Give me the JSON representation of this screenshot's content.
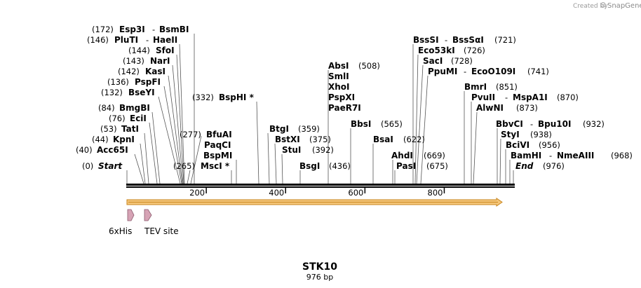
{
  "credit": {
    "text": "Created by",
    "brand": "SnapGene"
  },
  "map": {
    "name": "STK10",
    "length_label": "976 bp",
    "length_bp": 976,
    "ticks": [
      "200",
      "400",
      "600",
      "800"
    ],
    "tick_values": [
      200,
      400,
      600,
      800
    ],
    "features": [
      {
        "label": "6xHis"
      },
      {
        "label": "TEV site"
      }
    ]
  },
  "sites": {
    "esp3i": {
      "pos": "(172)",
      "name": "Esp3I",
      "sep": "-",
      "name2": "BsmBI"
    },
    "plutii": {
      "pos": "(146)",
      "name": "PluTI",
      "sep": "-",
      "name2": "HaeII"
    },
    "sfoi": {
      "pos": "(144)",
      "name": "SfoI"
    },
    "nari": {
      "pos": "(143)",
      "name": "NarI"
    },
    "kasi": {
      "pos": "(142)",
      "name": "KasI"
    },
    "pspfi": {
      "pos": "(136)",
      "name": "PspFI"
    },
    "bseyi": {
      "pos": "(132)",
      "name": "BseYI"
    },
    "bmgbi": {
      "pos": "(84)",
      "name": "BmgBI"
    },
    "ecii": {
      "pos": "(76)",
      "name": "EciI"
    },
    "tati": {
      "pos": "(53)",
      "name": "TatI"
    },
    "kpni": {
      "pos": "(44)",
      "name": "KpnI"
    },
    "acc65i": {
      "pos": "(40)",
      "name": "Acc65I"
    },
    "start": {
      "pos": "(0)",
      "name": "Start"
    },
    "bsphi": {
      "pos": "(332)",
      "name": "BspHI *"
    },
    "bfuai": {
      "pos": "(277)",
      "name": "BfuAI"
    },
    "paqci": {
      "name": "PaqCI"
    },
    "bspmi": {
      "name": "BspMI"
    },
    "msci": {
      "pos": "(265)",
      "name": "MscI *"
    },
    "absi": {
      "pos": "(508)",
      "name": "AbsI"
    },
    "smli": {
      "name": "SmlI"
    },
    "xhoi": {
      "name": "XhoI"
    },
    "pspxi": {
      "name": "PspXI"
    },
    "paer7i": {
      "name": "PaeR7I"
    },
    "btgi": {
      "pos": "(359)",
      "name": "BtgI"
    },
    "bstxi": {
      "pos": "(375)",
      "name": "BstXI"
    },
    "stui": {
      "pos": "(392)",
      "name": "StuI"
    },
    "bsgi": {
      "pos": "(436)",
      "name": "BsgI"
    },
    "bbsi": {
      "pos": "(565)",
      "name": "BbsI"
    },
    "bsai": {
      "pos": "(622)",
      "name": "BsaI"
    },
    "ahdi": {
      "pos": "(669)",
      "name": "AhdI"
    },
    "pasi": {
      "pos": "(675)",
      "name": "PasI"
    },
    "bsssi": {
      "pos": "(721)",
      "name": "BssSI",
      "sep": "-",
      "name2": "BssSαI"
    },
    "eco53ki": {
      "pos": "(726)",
      "name": "Eco53kI"
    },
    "saci": {
      "pos": "(728)",
      "name": "SacI"
    },
    "ppumi": {
      "pos": "(741)",
      "name": "PpuMI",
      "sep": "-",
      "name2": "EcoO109I"
    },
    "bmri": {
      "pos": "(851)",
      "name": "BmrI"
    },
    "pvuii": {
      "pos": "(870)",
      "name": "PvuII",
      "sep": "-",
      "name2": "MspA1I"
    },
    "alwni": {
      "pos": "(873)",
      "name": "AlwNI"
    },
    "bbvci": {
      "pos": "(932)",
      "name": "BbvCI",
      "sep": "-",
      "name2": "Bpu10I"
    },
    "styi": {
      "pos": "(938)",
      "name": "StyI"
    },
    "bcivi": {
      "pos": "(956)",
      "name": "BciVI"
    },
    "bamhi": {
      "pos": "(968)",
      "name": "BamHI",
      "sep": "-",
      "name2": "NmeAIII"
    },
    "end": {
      "pos": "(976)",
      "name": "End"
    }
  },
  "colors": {
    "backbone": "#000000",
    "orf_fill": "#f5c67a",
    "orf_stroke": "#c8861e",
    "feature_fill": "#d6a3b5",
    "feature_stroke": "#8a5a6c",
    "leader": "#555555"
  }
}
